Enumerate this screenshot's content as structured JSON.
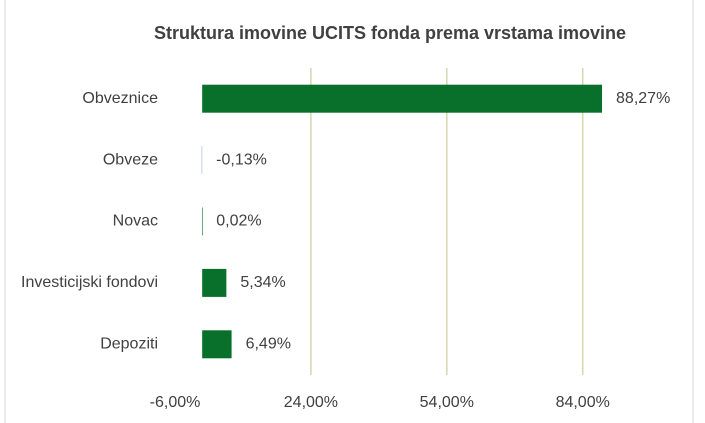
{
  "chart_data": {
    "type": "bar",
    "orientation": "horizontal",
    "title": "Struktura imovine UCITS fonda prema vrstama imovine",
    "categories": [
      "Obveznice",
      "Obveze",
      "Novac",
      "Investicijski fondovi",
      "Depoziti"
    ],
    "values": [
      88.27,
      -0.13,
      0.02,
      5.34,
      6.49
    ],
    "value_labels": [
      "88,27%",
      "-0,13%",
      "0,02%",
      "5,34%",
      "6,49%"
    ],
    "colors": [
      "#08702a",
      "#9fb6e0",
      "#08702a",
      "#08702a",
      "#08702a"
    ],
    "xlim": [
      -6,
      94
    ],
    "xticks": [
      {
        "value": -6,
        "label": "-6,00%"
      },
      {
        "value": 24,
        "label": "24,00%"
      },
      {
        "value": 54,
        "label": "54,00%"
      },
      {
        "value": 84,
        "label": "84,00%"
      }
    ],
    "grid": true
  }
}
